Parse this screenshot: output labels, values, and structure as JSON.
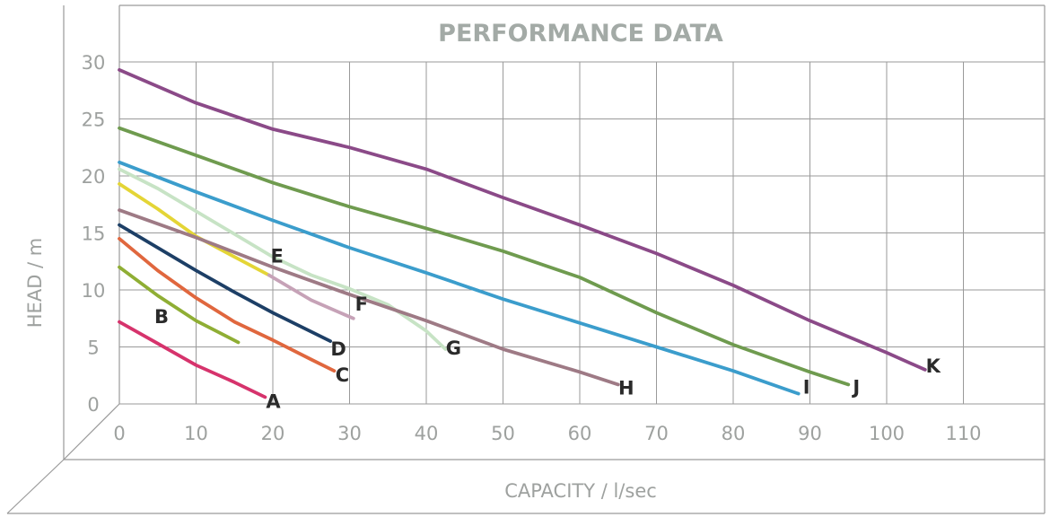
{
  "chart_data": {
    "type": "line",
    "title": "PERFORMANCE DATA",
    "xlabel": "CAPACITY / l/sec",
    "ylabel": "HEAD / m",
    "xlim": [
      0,
      110
    ],
    "ylim": [
      0,
      30
    ],
    "x_ticks": [
      0,
      10,
      20,
      30,
      40,
      50,
      60,
      70,
      80,
      90,
      100,
      110
    ],
    "y_ticks": [
      0,
      5,
      10,
      15,
      20,
      25,
      30
    ],
    "grid": true,
    "series": [
      {
        "name": "A",
        "color": "#d6336c",
        "points": [
          [
            0,
            7.2
          ],
          [
            5,
            5.3
          ],
          [
            10,
            3.4
          ],
          [
            15,
            1.9
          ],
          [
            19,
            0.6
          ]
        ]
      },
      {
        "name": "B",
        "color": "#8fae34",
        "points": [
          [
            0,
            12.0
          ],
          [
            5,
            9.5
          ],
          [
            10,
            7.3
          ],
          [
            15.5,
            5.4
          ]
        ]
      },
      {
        "name": "C",
        "color": "#e0673e",
        "points": [
          [
            0,
            14.5
          ],
          [
            5,
            11.7
          ],
          [
            10,
            9.3
          ],
          [
            15,
            7.2
          ],
          [
            20,
            5.6
          ],
          [
            25,
            3.9
          ],
          [
            28,
            2.9
          ]
        ]
      },
      {
        "name": "D",
        "color": "#1d3f66",
        "points": [
          [
            0,
            15.7
          ],
          [
            5,
            13.7
          ],
          [
            10,
            11.7
          ],
          [
            15,
            9.8
          ],
          [
            20,
            8.0
          ],
          [
            27.5,
            5.5
          ]
        ]
      },
      {
        "name": "E",
        "color": "#e4d536",
        "points": [
          [
            0,
            19.3
          ],
          [
            5,
            17.1
          ],
          [
            10,
            14.7
          ],
          [
            15,
            12.9
          ],
          [
            19.5,
            11.3
          ]
        ]
      },
      {
        "name": "F",
        "color": "#c6a2b7",
        "points": [
          [
            19.5,
            11.3
          ],
          [
            25,
            9.1
          ],
          [
            30.5,
            7.5
          ]
        ]
      },
      {
        "name": "G",
        "color": "#c7e3c5",
        "points": [
          [
            0,
            20.6
          ],
          [
            5,
            18.9
          ],
          [
            10,
            16.9
          ],
          [
            15,
            14.9
          ],
          [
            20,
            12.9
          ],
          [
            25,
            11.3
          ],
          [
            30,
            10.1
          ],
          [
            35,
            8.7
          ],
          [
            40,
            6.4
          ],
          [
            42.5,
            4.8
          ]
        ]
      },
      {
        "name": "H",
        "color": "#9e7a85",
        "points": [
          [
            0,
            17.0
          ],
          [
            10,
            14.6
          ],
          [
            20,
            12.0
          ],
          [
            30,
            9.6
          ],
          [
            40,
            7.3
          ],
          [
            50,
            4.8
          ],
          [
            60,
            2.8
          ],
          [
            65,
            1.7
          ]
        ]
      },
      {
        "name": "I",
        "color": "#3b9dcc",
        "points": [
          [
            0,
            21.2
          ],
          [
            10,
            18.6
          ],
          [
            20,
            16.1
          ],
          [
            30,
            13.7
          ],
          [
            40,
            11.5
          ],
          [
            50,
            9.2
          ],
          [
            60,
            7.1
          ],
          [
            70,
            5.0
          ],
          [
            80,
            2.9
          ],
          [
            88.5,
            0.9
          ]
        ]
      },
      {
        "name": "J",
        "color": "#6f9b4f",
        "points": [
          [
            0,
            24.2
          ],
          [
            10,
            21.8
          ],
          [
            20,
            19.4
          ],
          [
            30,
            17.3
          ],
          [
            40,
            15.4
          ],
          [
            50,
            13.4
          ],
          [
            60,
            11.1
          ],
          [
            70,
            8.0
          ],
          [
            80,
            5.2
          ],
          [
            90,
            2.8
          ],
          [
            95,
            1.7
          ]
        ]
      },
      {
        "name": "K",
        "color": "#8b4a88",
        "points": [
          [
            0,
            29.3
          ],
          [
            10,
            26.4
          ],
          [
            20,
            24.1
          ],
          [
            30,
            22.5
          ],
          [
            40,
            20.6
          ],
          [
            50,
            18.1
          ],
          [
            60,
            15.7
          ],
          [
            70,
            13.2
          ],
          [
            80,
            10.4
          ],
          [
            90,
            7.3
          ],
          [
            100,
            4.5
          ],
          [
            105,
            3.0
          ]
        ]
      }
    ]
  }
}
